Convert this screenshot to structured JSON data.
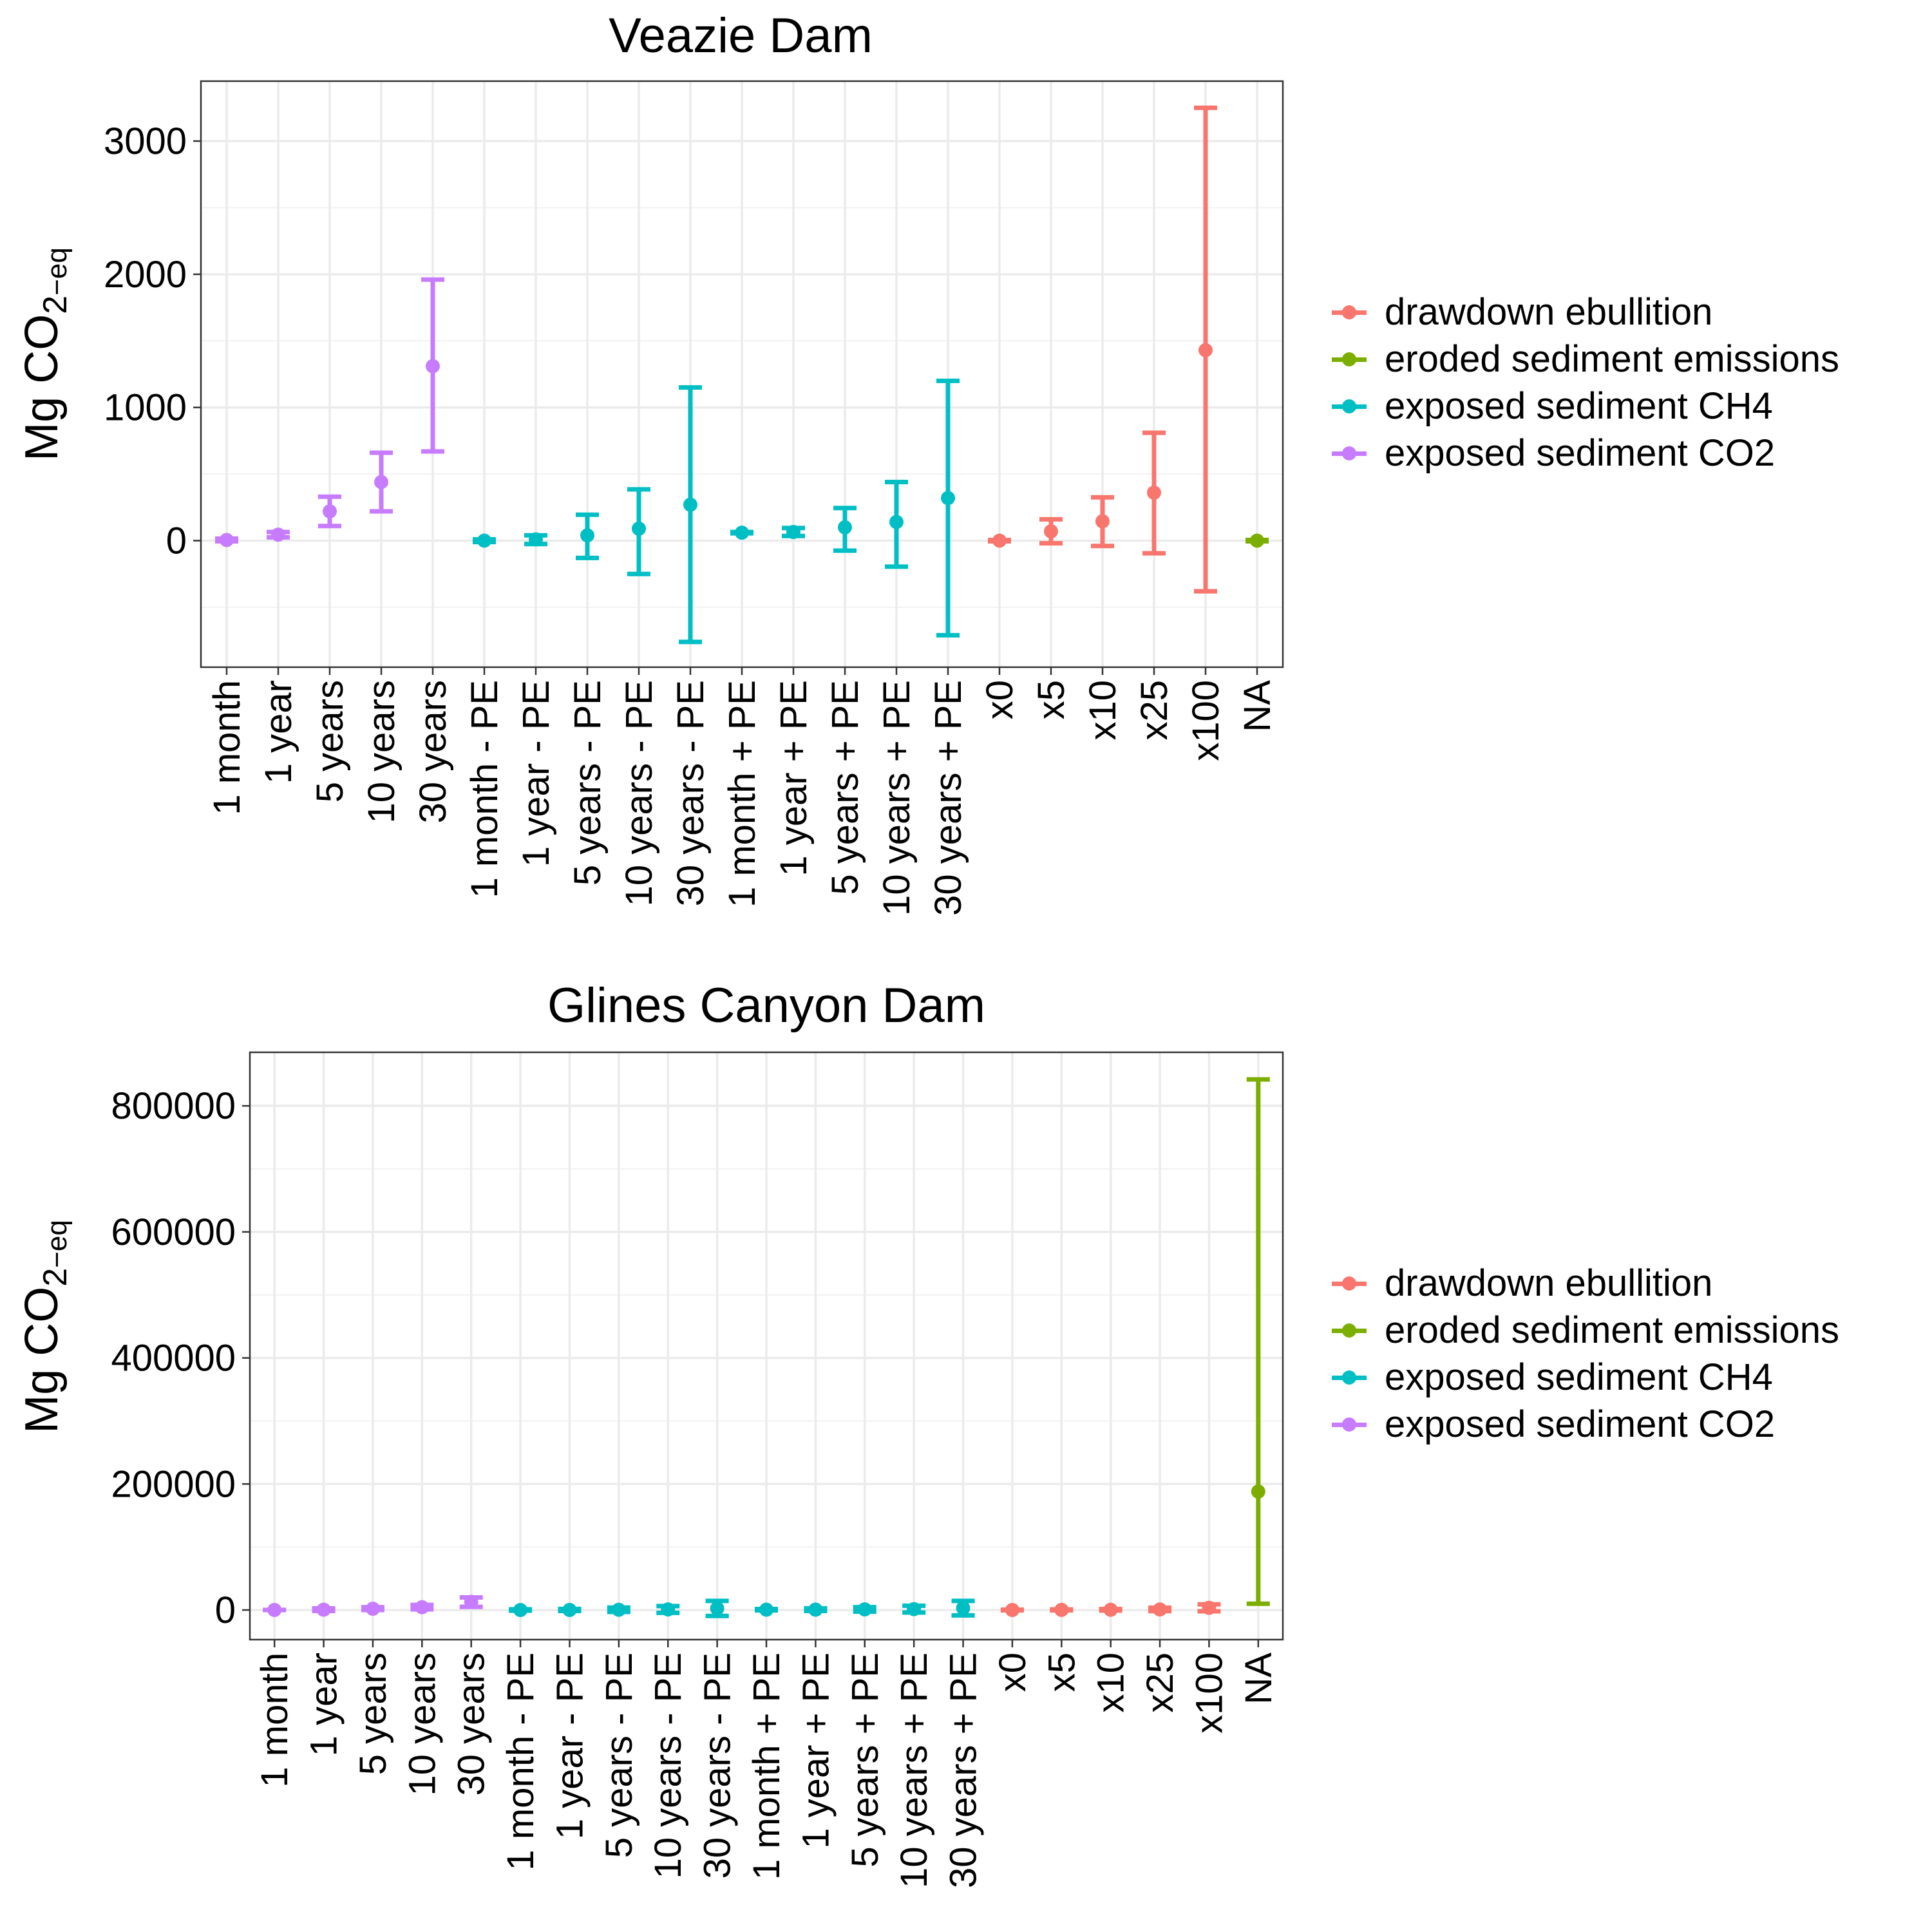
{
  "colors": {
    "drawdown ebullition": "#F8766D",
    "eroded sediment emissions": "#7CAE00",
    "exposed sediment CH4": "#00BFC4",
    "exposed sediment CO2": "#C77CFF"
  },
  "legend": {
    "entries": [
      "drawdown ebullition",
      "eroded sediment emissions",
      "exposed sediment CH4",
      "exposed sediment CO2"
    ]
  },
  "ylabel": {
    "prefix": "Mg CO",
    "subscript": "2",
    "sub2": "−eq"
  },
  "chart_data": [
    {
      "type": "scatter",
      "title": "Veazie Dam",
      "ylim": [
        -950,
        3450
      ],
      "yticks": [
        0,
        1000,
        2000,
        3000
      ],
      "grid": true,
      "legend_position": "right",
      "categories": [
        "1 month",
        "1 year",
        "5 years",
        "10 years",
        "30 years",
        "1 month - PE",
        "1 year - PE",
        "5 years - PE",
        "10 years - PE",
        "30 years - PE",
        "1 month + PE",
        "1 year + PE",
        "5 years + PE",
        "10 years + PE",
        "30 years + PE",
        "x0",
        "x5",
        "x10",
        "x25",
        "x100",
        "NA"
      ],
      "points": [
        {
          "x": "1 month",
          "series": "exposed sediment CO2",
          "y": 5,
          "ymin": -5,
          "ymax": 15
        },
        {
          "x": "1 year",
          "series": "exposed sediment CO2",
          "y": 45,
          "ymin": 25,
          "ymax": 65
        },
        {
          "x": "5 years",
          "series": "exposed sediment CO2",
          "y": 220,
          "ymin": 110,
          "ymax": 330
        },
        {
          "x": "10 years",
          "series": "exposed sediment CO2",
          "y": 440,
          "ymin": 220,
          "ymax": 660
        },
        {
          "x": "30 years",
          "series": "exposed sediment CO2",
          "y": 1310,
          "ymin": 670,
          "ymax": 1960
        },
        {
          "x": "1 month - PE",
          "series": "exposed sediment CH4",
          "y": 0,
          "ymin": -10,
          "ymax": 10
        },
        {
          "x": "1 year - PE",
          "series": "exposed sediment CH4",
          "y": 10,
          "ymin": -25,
          "ymax": 40
        },
        {
          "x": "5 years - PE",
          "series": "exposed sediment CH4",
          "y": 40,
          "ymin": -130,
          "ymax": 195
        },
        {
          "x": "10 years - PE",
          "series": "exposed sediment CH4",
          "y": 90,
          "ymin": -250,
          "ymax": 385
        },
        {
          "x": "30 years - PE",
          "series": "exposed sediment CH4",
          "y": 270,
          "ymin": -760,
          "ymax": 1150
        },
        {
          "x": "1 month + PE",
          "series": "exposed sediment CH4",
          "y": 60,
          "ymin": 55,
          "ymax": 65
        },
        {
          "x": "1 year + PE",
          "series": "exposed sediment CH4",
          "y": 65,
          "ymin": 35,
          "ymax": 95
        },
        {
          "x": "5 years + PE",
          "series": "exposed sediment CH4",
          "y": 100,
          "ymin": -75,
          "ymax": 245
        },
        {
          "x": "10 years + PE",
          "series": "exposed sediment CH4",
          "y": 140,
          "ymin": -195,
          "ymax": 440
        },
        {
          "x": "30 years + PE",
          "series": "exposed sediment CH4",
          "y": 320,
          "ymin": -710,
          "ymax": 1200
        },
        {
          "x": "x0",
          "series": "drawdown ebullition",
          "y": 0,
          "ymin": -5,
          "ymax": 5
        },
        {
          "x": "x5",
          "series": "drawdown ebullition",
          "y": 70,
          "ymin": -20,
          "ymax": 160
        },
        {
          "x": "x10",
          "series": "drawdown ebullition",
          "y": 145,
          "ymin": -40,
          "ymax": 325
        },
        {
          "x": "x25",
          "series": "drawdown ebullition",
          "y": 360,
          "ymin": -95,
          "ymax": 810
        },
        {
          "x": "x100",
          "series": "drawdown ebullition",
          "y": 1430,
          "ymin": -380,
          "ymax": 3250
        },
        {
          "x": "NA",
          "series": "eroded sediment emissions",
          "y": 0,
          "ymin": -5,
          "ymax": 5
        }
      ]
    },
    {
      "type": "scatter",
      "title": "Glines Canyon Dam",
      "ylim": [
        -47000,
        885000
      ],
      "yticks": [
        0,
        200000,
        400000,
        600000,
        800000
      ],
      "grid": true,
      "legend_position": "right",
      "categories": [
        "1 month",
        "1 year",
        "5 years",
        "10 years",
        "30 years",
        "1 month - PE",
        "1 year - PE",
        "5 years - PE",
        "10 years - PE",
        "30 years - PE",
        "1 month + PE",
        "1 year + PE",
        "5 years + PE",
        "10 years + PE",
        "30 years + PE",
        "x0",
        "x5",
        "x10",
        "x25",
        "x100",
        "NA"
      ],
      "points": [
        {
          "x": "1 month",
          "series": "exposed sediment CO2",
          "y": 100,
          "ymin": 0,
          "ymax": 200
        },
        {
          "x": "1 year",
          "series": "exposed sediment CO2",
          "y": 500,
          "ymin": -1500,
          "ymax": 2500
        },
        {
          "x": "5 years",
          "series": "exposed sediment CO2",
          "y": 2000,
          "ymin": 0,
          "ymax": 4500
        },
        {
          "x": "10 years",
          "series": "exposed sediment CO2",
          "y": 4500,
          "ymin": 1000,
          "ymax": 8000
        },
        {
          "x": "30 years",
          "series": "exposed sediment CO2",
          "y": 13000,
          "ymin": 5000,
          "ymax": 20000
        },
        {
          "x": "1 month - PE",
          "series": "exposed sediment CH4",
          "y": 0,
          "ymin": -1000,
          "ymax": 1000
        },
        {
          "x": "1 year - PE",
          "series": "exposed sediment CH4",
          "y": 100,
          "ymin": -1500,
          "ymax": 1700
        },
        {
          "x": "5 years - PE",
          "series": "exposed sediment CH4",
          "y": 400,
          "ymin": -3000,
          "ymax": 3800
        },
        {
          "x": "10 years - PE",
          "series": "exposed sediment CH4",
          "y": 900,
          "ymin": -4500,
          "ymax": 6300
        },
        {
          "x": "30 years - PE",
          "series": "exposed sediment CH4",
          "y": 2500,
          "ymin": -9500,
          "ymax": 14500
        },
        {
          "x": "1 month + PE",
          "series": "exposed sediment CH4",
          "y": 500,
          "ymin": -500,
          "ymax": 1500
        },
        {
          "x": "1 year + PE",
          "series": "exposed sediment CH4",
          "y": 600,
          "ymin": -1500,
          "ymax": 2700
        },
        {
          "x": "5 years + PE",
          "series": "exposed sediment CH4",
          "y": 1000,
          "ymin": -2500,
          "ymax": 4500
        },
        {
          "x": "10 years + PE",
          "series": "exposed sediment CH4",
          "y": 1400,
          "ymin": -4000,
          "ymax": 6800
        },
        {
          "x": "30 years + PE",
          "series": "exposed sediment CH4",
          "y": 3000,
          "ymin": -8500,
          "ymax": 14500
        },
        {
          "x": "x0",
          "series": "drawdown ebullition",
          "y": 0,
          "ymin": -500,
          "ymax": 500
        },
        {
          "x": "x5",
          "series": "drawdown ebullition",
          "y": 200,
          "ymin": -500,
          "ymax": 900
        },
        {
          "x": "x10",
          "series": "drawdown ebullition",
          "y": 400,
          "ymin": -800,
          "ymax": 1600
        },
        {
          "x": "x25",
          "series": "drawdown ebullition",
          "y": 900,
          "ymin": -1800,
          "ymax": 3600
        },
        {
          "x": "x100",
          "series": "drawdown ebullition",
          "y": 3500,
          "ymin": -2000,
          "ymax": 9000
        },
        {
          "x": "NA",
          "series": "eroded sediment emissions",
          "y": 188000,
          "ymin": 10000,
          "ymax": 842000
        }
      ]
    }
  ]
}
